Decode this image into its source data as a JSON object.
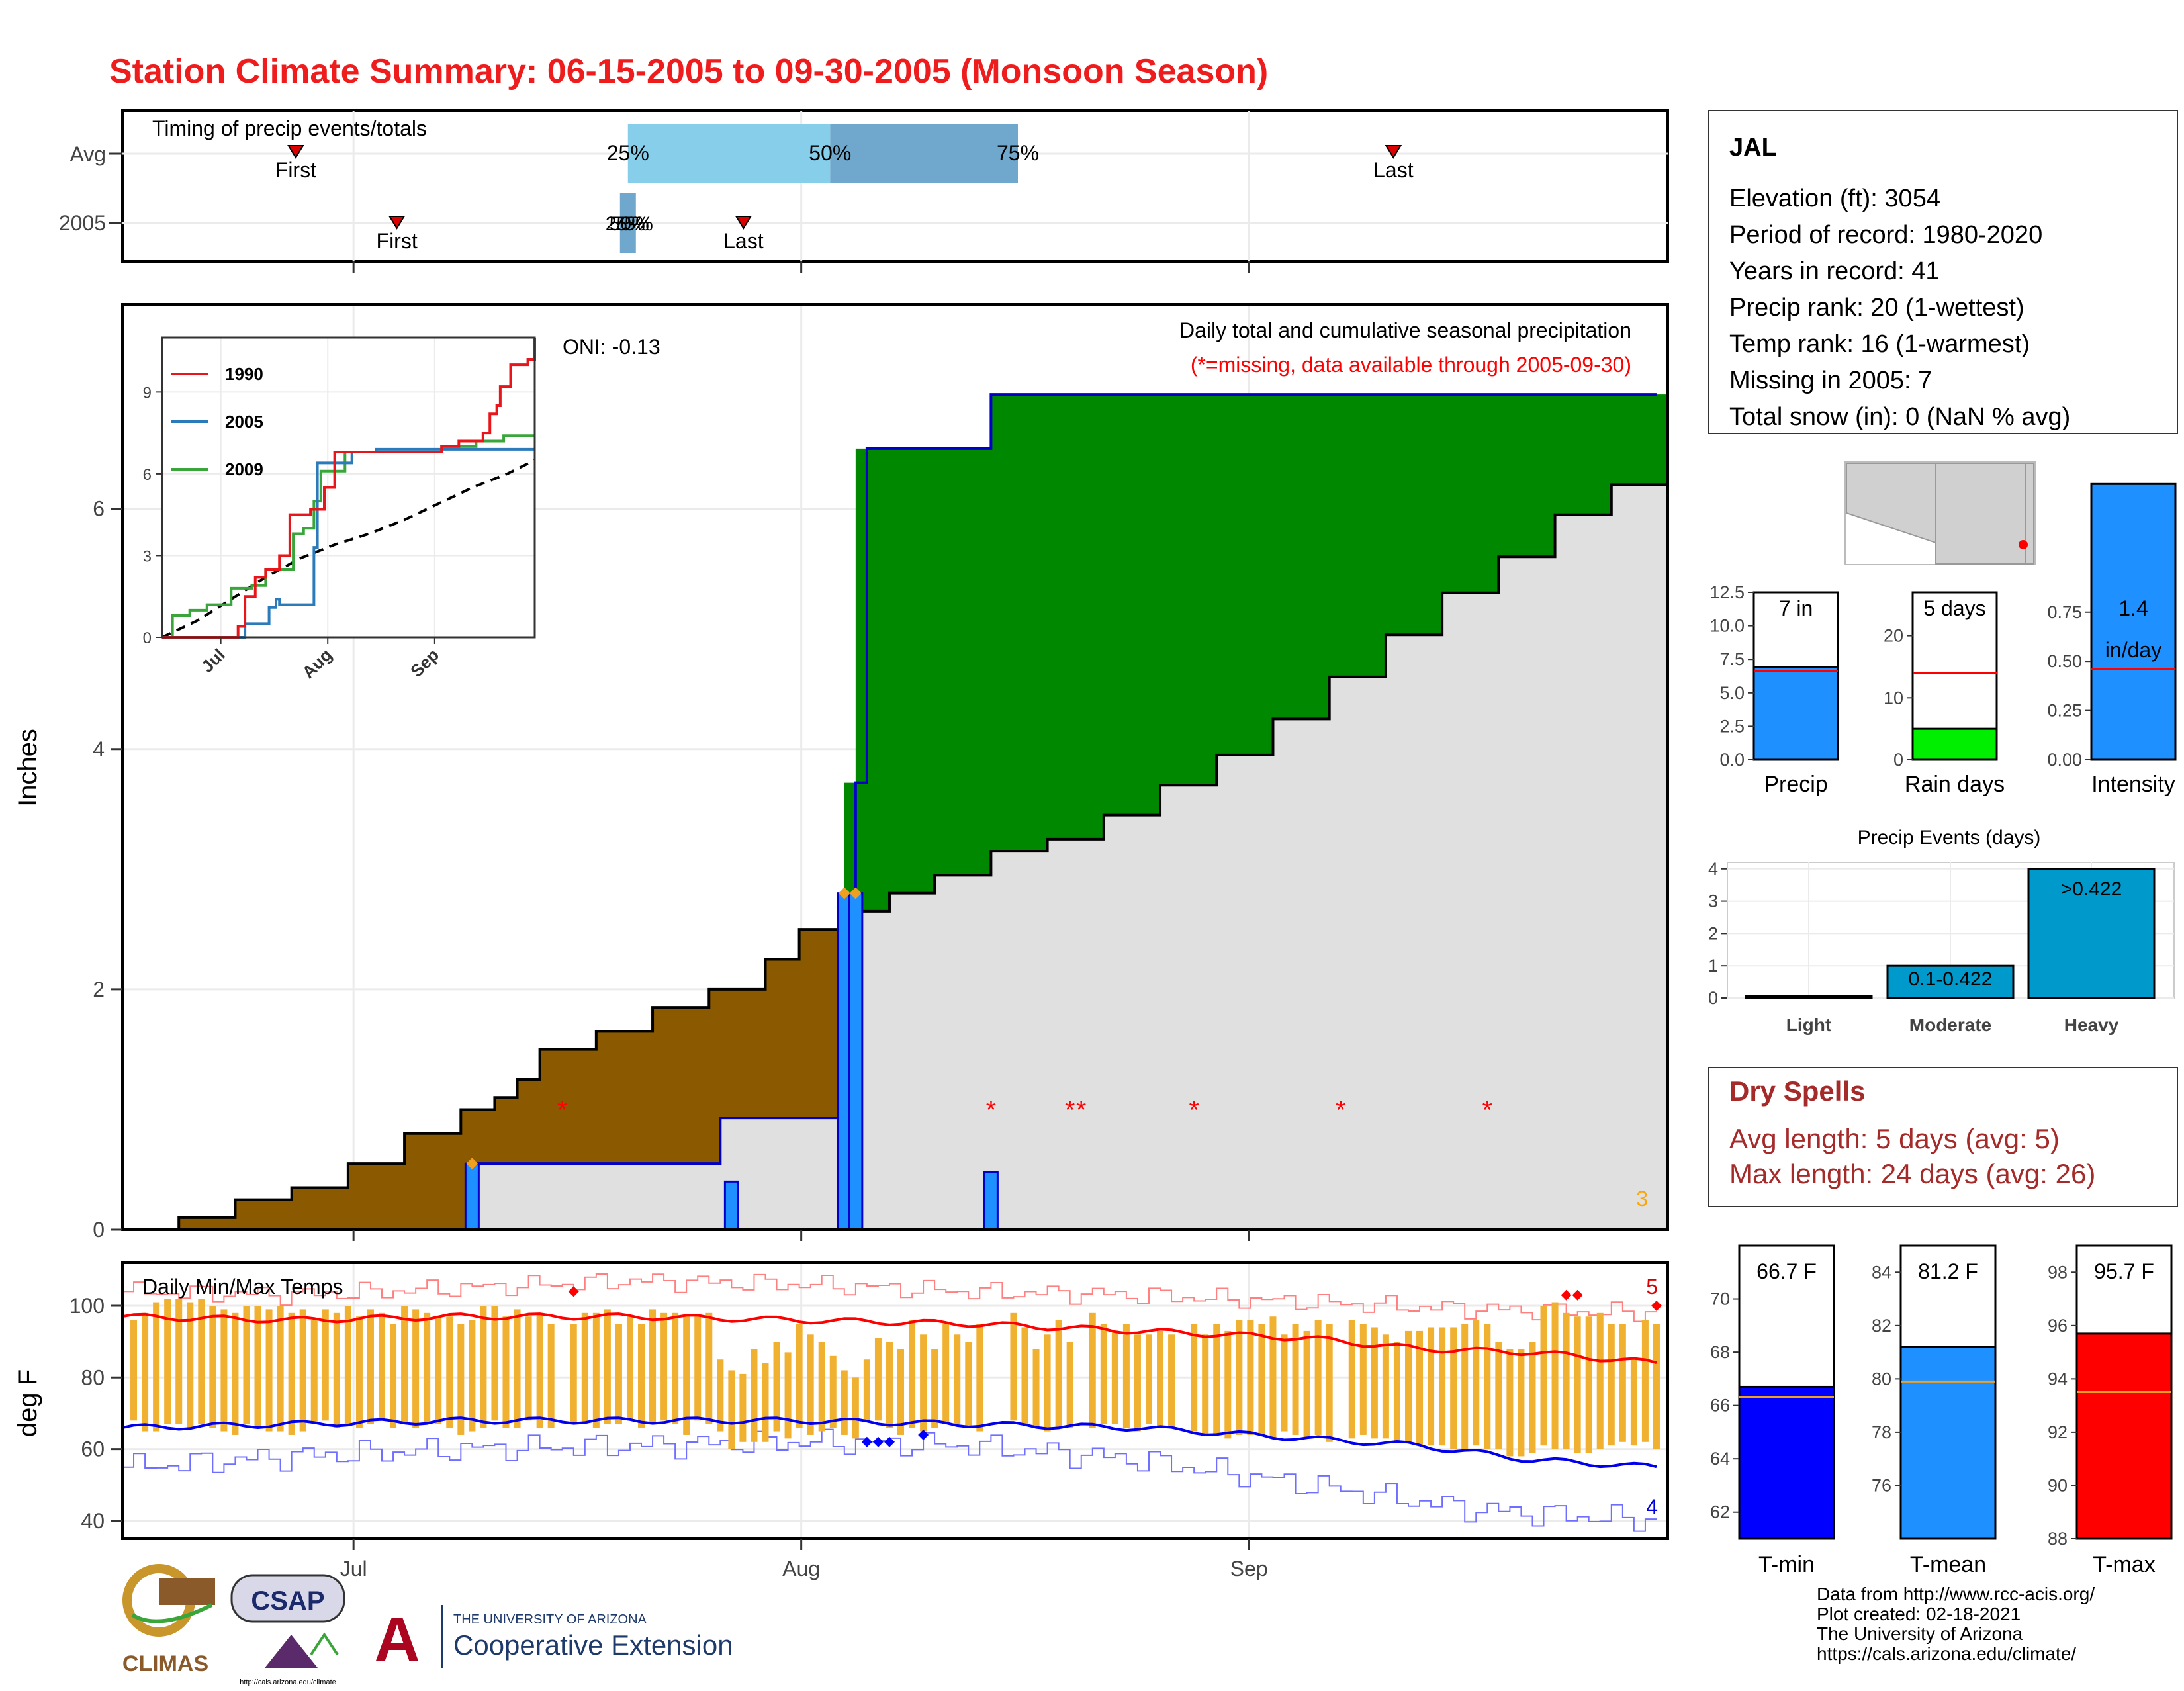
{
  "title": "Station Climate Summary: 06-15-2005 to 09-30-2005 (Monsoon Season)",
  "colors": {
    "title": "#ee1c1c",
    "precip_blue": "#1e90ff",
    "dark_blue": "#0000cc",
    "brown": "#8b5a00",
    "green": "#008800",
    "light_gray": "#e0e0e0",
    "orange": "#f0b030",
    "red": "#ff0000",
    "quartile_light": "#87ceeb",
    "quartile_dark": "#6fa8cc",
    "bright_green": "#00ee00",
    "events_blue": "#0099cc",
    "dry_spell_text": "#a52a2a"
  },
  "timing": {
    "label": "Timing of precip events/totals",
    "rows": [
      "Avg",
      "2005"
    ],
    "avg": {
      "first_day": 28,
      "last_day": 104,
      "q25_day": 51,
      "q50_day": 65,
      "q75_day": 78,
      "first_label": "First",
      "last_label": "Last",
      "q25_label": "25%",
      "q50_label": "50%",
      "q75_label": "75%"
    },
    "y2005": {
      "first_day": 35,
      "last_day": 59,
      "q25_day": 51,
      "q50_day": 51.5,
      "q75_day": 52,
      "first_label": "First",
      "last_label": "Last",
      "overlap_label": "25%",
      "overlap_label2": "50%",
      "overlap_label3": "75%"
    }
  },
  "main": {
    "ylabel": "Inches",
    "note1": "Daily total and cumulative seasonal precipitation",
    "note2": "(*=missing, data available through 2005-09-30)",
    "oni": "ONI: -0.13",
    "corner_count": "3",
    "yticks": [
      0,
      2,
      4,
      6
    ],
    "ylim": [
      0,
      7.7
    ],
    "avg_cumulative": [
      [
        0,
        0
      ],
      [
        5,
        0.1
      ],
      [
        10,
        0.25
      ],
      [
        15,
        0.35
      ],
      [
        20,
        0.55
      ],
      [
        25,
        0.8
      ],
      [
        30,
        1.0
      ],
      [
        33,
        1.1
      ],
      [
        35,
        1.25
      ],
      [
        37,
        1.5
      ],
      [
        42,
        1.65
      ],
      [
        47,
        1.85
      ],
      [
        52,
        2.0
      ],
      [
        57,
        2.25
      ],
      [
        60,
        2.5
      ],
      [
        64,
        2.65
      ],
      [
        68,
        2.8
      ],
      [
        72,
        2.95
      ],
      [
        77,
        3.15
      ],
      [
        82,
        3.25
      ],
      [
        87,
        3.45
      ],
      [
        92,
        3.7
      ],
      [
        97,
        3.95
      ],
      [
        102,
        4.25
      ],
      [
        107,
        4.6
      ],
      [
        112,
        4.95
      ],
      [
        117,
        5.3
      ],
      [
        122,
        5.6
      ],
      [
        127,
        5.95
      ],
      [
        132,
        6.2
      ],
      [
        136,
        6.2
      ],
      [
        137,
        6.3
      ]
    ],
    "cum_2005": [
      [
        0,
        0
      ],
      [
        31,
        0.55
      ],
      [
        53,
        0.93
      ],
      [
        65,
        3.72
      ],
      [
        66,
        6.5
      ],
      [
        77,
        6.95
      ],
      [
        136,
        6.95
      ]
    ],
    "daily_2005": [
      [
        31,
        0.55
      ],
      [
        54,
        0.4
      ],
      [
        64,
        2.8
      ],
      [
        65,
        2.8
      ],
      [
        77,
        0.48
      ]
    ],
    "missing_days": [
      39,
      77,
      84,
      85,
      95,
      108,
      121
    ],
    "orange_marks": [
      [
        31,
        0.55
      ],
      [
        64,
        2.8
      ],
      [
        65,
        2.8
      ]
    ]
  },
  "inset": {
    "legend": [
      "1990",
      "2005",
      "2009"
    ],
    "series_colors": [
      "#e8161a",
      "#2b7bba",
      "#3aa53a"
    ],
    "yticks": [
      0,
      3,
      6,
      9
    ],
    "xticks": [
      "Jul",
      "Aug",
      "Sep"
    ],
    "ylim": [
      0,
      11
    ],
    "y1990": [
      [
        0,
        0
      ],
      [
        21,
        0
      ],
      [
        22,
        0.4
      ],
      [
        24,
        1.5
      ],
      [
        27,
        2.2
      ],
      [
        30,
        2.5
      ],
      [
        34,
        3.0
      ],
      [
        37,
        4.5
      ],
      [
        43,
        4.7
      ],
      [
        47,
        5.5
      ],
      [
        50,
        6.8
      ],
      [
        64,
        6.8
      ],
      [
        70,
        6.8
      ],
      [
        81,
        7.0
      ],
      [
        86,
        7.2
      ],
      [
        93,
        7.5
      ],
      [
        95,
        8.2
      ],
      [
        97,
        8.5
      ],
      [
        98,
        9.2
      ],
      [
        101,
        10.0
      ],
      [
        106,
        10.2
      ],
      [
        108,
        11.0
      ]
    ],
    "y2005": [
      [
        0,
        0
      ],
      [
        23,
        0
      ],
      [
        24,
        0.5
      ],
      [
        31,
        1.1
      ],
      [
        33,
        1.4
      ],
      [
        34,
        1.2
      ],
      [
        44,
        3.3
      ],
      [
        45,
        6.4
      ],
      [
        55,
        6.8
      ],
      [
        62,
        6.9
      ],
      [
        108,
        6.9
      ]
    ],
    "y2009": [
      [
        0,
        0
      ],
      [
        3,
        0.8
      ],
      [
        8,
        1.0
      ],
      [
        13,
        1.2
      ],
      [
        20,
        1.8
      ],
      [
        26,
        1.9
      ],
      [
        30,
        2.5
      ],
      [
        38,
        3.8
      ],
      [
        41,
        4.0
      ],
      [
        44,
        5.0
      ],
      [
        46,
        6.1
      ],
      [
        53,
        6.8
      ],
      [
        66,
        6.8
      ],
      [
        81,
        7.0
      ],
      [
        91,
        7.2
      ],
      [
        99,
        7.4
      ],
      [
        108,
        7.4
      ]
    ],
    "avg": [
      [
        0,
        0
      ],
      [
        10,
        0.6
      ],
      [
        20,
        1.4
      ],
      [
        30,
        2.2
      ],
      [
        40,
        2.9
      ],
      [
        50,
        3.4
      ],
      [
        60,
        3.8
      ],
      [
        70,
        4.3
      ],
      [
        80,
        4.9
      ],
      [
        90,
        5.5
      ],
      [
        100,
        6.0
      ],
      [
        108,
        6.5
      ]
    ]
  },
  "temps": {
    "ylabel": "deg F",
    "label": "Daily Min/Max Temps",
    "count_max": "5",
    "count_min": "4",
    "yticks": [
      40,
      60,
      80,
      100
    ],
    "ylim": [
      35,
      112
    ],
    "xticks": [
      "Jul",
      "Aug",
      "Sep"
    ],
    "bars": [
      [
        0,
        null,
        null
      ],
      [
        1,
        96,
        68
      ],
      [
        2,
        98,
        65
      ],
      [
        3,
        101,
        65
      ],
      [
        4,
        102,
        67
      ],
      [
        5,
        102,
        67
      ],
      [
        6,
        101,
        66
      ],
      [
        7,
        102,
        67
      ],
      [
        8,
        100,
        66
      ],
      [
        9,
        99,
        65
      ],
      [
        10,
        98,
        64
      ],
      [
        11,
        100,
        67
      ],
      [
        12,
        100,
        66
      ],
      [
        13,
        99,
        65
      ],
      [
        14,
        100,
        65
      ],
      [
        15,
        98,
        64
      ],
      [
        16,
        99,
        65
      ],
      [
        17,
        96,
        67
      ],
      [
        18,
        99,
        68
      ],
      [
        19,
        98,
        66
      ],
      [
        20,
        100,
        67
      ],
      [
        21,
        97,
        66
      ],
      [
        22,
        99,
        67
      ],
      [
        23,
        98,
        68
      ],
      [
        24,
        95,
        66
      ],
      [
        25,
        100,
        67
      ],
      [
        26,
        99,
        66
      ],
      [
        27,
        98,
        67
      ],
      [
        28,
        97,
        67
      ],
      [
        29,
        97,
        66
      ],
      [
        30,
        95,
        64
      ],
      [
        31,
        96,
        65
      ],
      [
        32,
        100,
        66
      ],
      [
        33,
        100,
        68
      ],
      [
        34,
        97,
        66
      ],
      [
        35,
        99,
        66
      ],
      [
        36,
        97,
        68
      ],
      [
        37,
        98,
        66
      ],
      [
        38,
        95,
        66
      ],
      [
        39,
        null,
        null
      ],
      [
        40,
        95,
        67
      ],
      [
        41,
        98,
        67
      ],
      [
        42,
        98,
        66
      ],
      [
        43,
        99,
        67
      ],
      [
        44,
        95,
        67
      ],
      [
        45,
        97,
        68
      ],
      [
        46,
        95,
        66
      ],
      [
        47,
        99,
        67
      ],
      [
        48,
        98,
        68
      ],
      [
        49,
        98,
        67
      ],
      [
        50,
        97,
        64
      ],
      [
        51,
        97,
        68
      ],
      [
        52,
        98,
        67
      ],
      [
        53,
        85,
        65
      ],
      [
        54,
        82,
        60
      ],
      [
        55,
        81,
        62
      ],
      [
        56,
        88,
        62
      ],
      [
        57,
        84,
        62
      ],
      [
        58,
        90,
        65
      ],
      [
        59,
        87,
        63
      ],
      [
        60,
        95,
        66
      ],
      [
        61,
        92,
        64
      ],
      [
        62,
        90,
        65
      ],
      [
        63,
        86,
        66
      ],
      [
        64,
        82,
        64
      ],
      [
        65,
        80,
        63
      ],
      [
        66,
        85,
        68
      ],
      [
        67,
        91,
        68
      ],
      [
        68,
        90,
        66
      ],
      [
        69,
        88,
        64
      ],
      [
        70,
        96,
        66
      ],
      [
        71,
        92,
        65
      ],
      [
        72,
        88,
        66
      ],
      [
        73,
        95,
        67
      ],
      [
        74,
        92,
        67
      ],
      [
        75,
        90,
        66
      ],
      [
        76,
        95,
        65
      ],
      [
        77,
        null,
        null
      ],
      [
        78,
        null,
        null
      ],
      [
        79,
        98,
        68
      ],
      [
        80,
        94,
        67
      ],
      [
        81,
        88,
        66
      ],
      [
        82,
        92,
        65
      ],
      [
        83,
        96,
        66
      ],
      [
        84,
        90,
        66
      ],
      [
        85,
        null,
        null
      ],
      [
        86,
        98,
        66
      ],
      [
        87,
        95,
        67
      ],
      [
        88,
        93,
        67
      ],
      [
        89,
        95,
        66
      ],
      [
        90,
        92,
        65
      ],
      [
        91,
        92,
        67
      ],
      [
        92,
        93,
        66
      ],
      [
        93,
        92,
        66
      ],
      [
        94,
        null,
        null
      ],
      [
        95,
        95,
        65
      ],
      [
        96,
        92,
        64
      ],
      [
        97,
        95,
        64
      ],
      [
        98,
        93,
        63
      ],
      [
        99,
        96,
        64
      ],
      [
        100,
        96,
        64
      ],
      [
        101,
        95,
        64
      ],
      [
        102,
        97,
        63
      ],
      [
        103,
        92,
        65
      ],
      [
        104,
        95,
        64
      ],
      [
        105,
        93,
        63
      ],
      [
        106,
        96,
        64
      ],
      [
        107,
        95,
        62
      ],
      [
        108,
        null,
        null
      ],
      [
        109,
        96,
        63
      ],
      [
        110,
        95,
        64
      ],
      [
        111,
        94,
        63
      ],
      [
        112,
        92,
        63
      ],
      [
        113,
        90,
        62
      ],
      [
        114,
        93,
        62
      ],
      [
        115,
        93,
        61
      ],
      [
        116,
        94,
        61
      ],
      [
        117,
        94,
        61
      ],
      [
        118,
        94,
        60
      ],
      [
        119,
        95,
        60
      ],
      [
        120,
        96,
        61
      ],
      [
        121,
        95,
        60
      ],
      [
        122,
        90,
        60
      ],
      [
        123,
        88,
        58
      ],
      [
        124,
        88,
        58
      ],
      [
        125,
        90,
        59
      ],
      [
        126,
        100,
        61
      ],
      [
        127,
        101,
        60
      ],
      [
        128,
        98,
        60
      ],
      [
        129,
        97,
        59
      ],
      [
        130,
        97,
        59
      ],
      [
        131,
        98,
        60
      ],
      [
        132,
        95,
        61
      ],
      [
        133,
        95,
        62
      ],
      [
        134,
        85,
        61
      ],
      [
        135,
        96,
        62
      ],
      [
        136,
        95,
        60
      ]
    ],
    "record_high_pts": [
      [
        0,
        104
      ],
      [
        15,
        103
      ],
      [
        30,
        105
      ],
      [
        45,
        107
      ],
      [
        60,
        106
      ],
      [
        75,
        104
      ],
      [
        90,
        103
      ],
      [
        105,
        101
      ],
      [
        120,
        99
      ],
      [
        136,
        98
      ]
    ],
    "record_low_pts": [
      [
        0,
        55
      ],
      [
        15,
        58
      ],
      [
        30,
        60
      ],
      [
        45,
        61
      ],
      [
        60,
        62
      ],
      [
        75,
        61
      ],
      [
        90,
        57
      ],
      [
        105,
        50
      ],
      [
        120,
        43
      ],
      [
        136,
        40
      ]
    ],
    "avg_high_pts": [
      [
        0,
        97
      ],
      [
        15,
        96
      ],
      [
        30,
        97
      ],
      [
        45,
        97
      ],
      [
        60,
        96
      ],
      [
        75,
        95
      ],
      [
        90,
        93
      ],
      [
        105,
        91
      ],
      [
        115,
        88
      ],
      [
        125,
        87
      ],
      [
        136,
        84
      ]
    ],
    "avg_low_pts": [
      [
        0,
        66
      ],
      [
        15,
        67
      ],
      [
        30,
        68
      ],
      [
        45,
        68
      ],
      [
        60,
        68
      ],
      [
        75,
        67
      ],
      [
        90,
        66
      ],
      [
        105,
        63
      ],
      [
        115,
        61
      ],
      [
        125,
        57
      ],
      [
        136,
        55
      ]
    ],
    "record_high_marks": [
      [
        40,
        104
      ],
      [
        128,
        103
      ],
      [
        129,
        103
      ],
      [
        136,
        100
      ]
    ],
    "record_low_marks": [
      [
        66,
        62
      ],
      [
        67,
        62
      ],
      [
        68,
        62
      ],
      [
        71,
        64
      ]
    ]
  },
  "station": {
    "name": "JAL",
    "lines": [
      "Elevation (ft): 3054",
      "Period of record: 1980-2020",
      "Years in record: 41",
      "Precip rank: 20 (1-wettest)",
      "Temp rank: 16 (1-warmest)",
      "Missing in 2005: 7",
      "Total snow (in): 0 (NaN % avg)"
    ]
  },
  "mini_bars": [
    {
      "label": "Precip",
      "value_label": "7 in",
      "value": 6.9,
      "avg": 6.6,
      "ymax": 12.5,
      "yticks": [
        "0.0",
        "2.5",
        "5.0",
        "7.5",
        "10.0",
        "12.5"
      ],
      "tick_vals": [
        0,
        2.5,
        5,
        7.5,
        10,
        12.5
      ],
      "color": "#1e90ff"
    },
    {
      "label": "Rain days",
      "value_label": "5 days",
      "value": 5,
      "avg": 14,
      "ymax": 27,
      "yticks": [
        "0",
        "10",
        "20"
      ],
      "tick_vals": [
        0,
        10,
        20
      ],
      "color": "#00ee00"
    },
    {
      "label": "Intensity",
      "value_label": "1.4",
      "value_label2": "in/day",
      "value": 1.4,
      "avg": 0.46,
      "ymax": 0.85,
      "yticks": [
        "0.00",
        "0.25",
        "0.50",
        "0.75"
      ],
      "tick_vals": [
        0,
        0.25,
        0.5,
        0.75
      ],
      "color": "#1e90ff"
    }
  ],
  "events": {
    "title": "Precip Events (days)",
    "categories": [
      "Light",
      "Moderate",
      "Heavy"
    ],
    "values": [
      0,
      1,
      4
    ],
    "labels": [
      "",
      "0.1-0.422",
      ">0.422"
    ],
    "yticks": [
      0,
      1,
      2,
      3,
      4
    ],
    "ylim": [
      0,
      4.2
    ]
  },
  "dry_spells": {
    "title": "Dry Spells",
    "avg_line": "Avg length: 5 days (avg: 5)",
    "max_line": "Max length: 24 days (avg: 26)"
  },
  "temp_bars": [
    {
      "label": "T-min",
      "value_label": "66.7 F",
      "value": 66.7,
      "avg": 66.3,
      "ymin": 61,
      "ymax": 72,
      "yticks": [
        62,
        64,
        66,
        68,
        70
      ],
      "color": "#0000ff"
    },
    {
      "label": "T-mean",
      "value_label": "81.2 F",
      "value": 81.2,
      "avg": 79.9,
      "ymin": 74,
      "ymax": 85,
      "yticks": [
        76,
        78,
        80,
        82,
        84
      ],
      "color": "#1e90ff"
    },
    {
      "label": "T-max",
      "value_label": "95.7 F",
      "value": 95.7,
      "avg": 93.5,
      "ymin": 88,
      "ymax": 99,
      "yticks": [
        88,
        90,
        92,
        94,
        96,
        98
      ],
      "color": "#ff0000"
    }
  ],
  "footer": {
    "lines": [
      "Data from http://www.rcc-acis.org/",
      "Plot created: 02-18-2021",
      "The University of Arizona",
      "https://cals.arizona.edu/climate/"
    ],
    "climas": "CLIMAS",
    "csap": "CSAP",
    "csap_url": "http://cals.arizona.edu/climate",
    "ua_top": "THE UNIVERSITY OF ARIZONA",
    "ua_bottom": "Cooperative Extension",
    "ua_letter": "A"
  }
}
